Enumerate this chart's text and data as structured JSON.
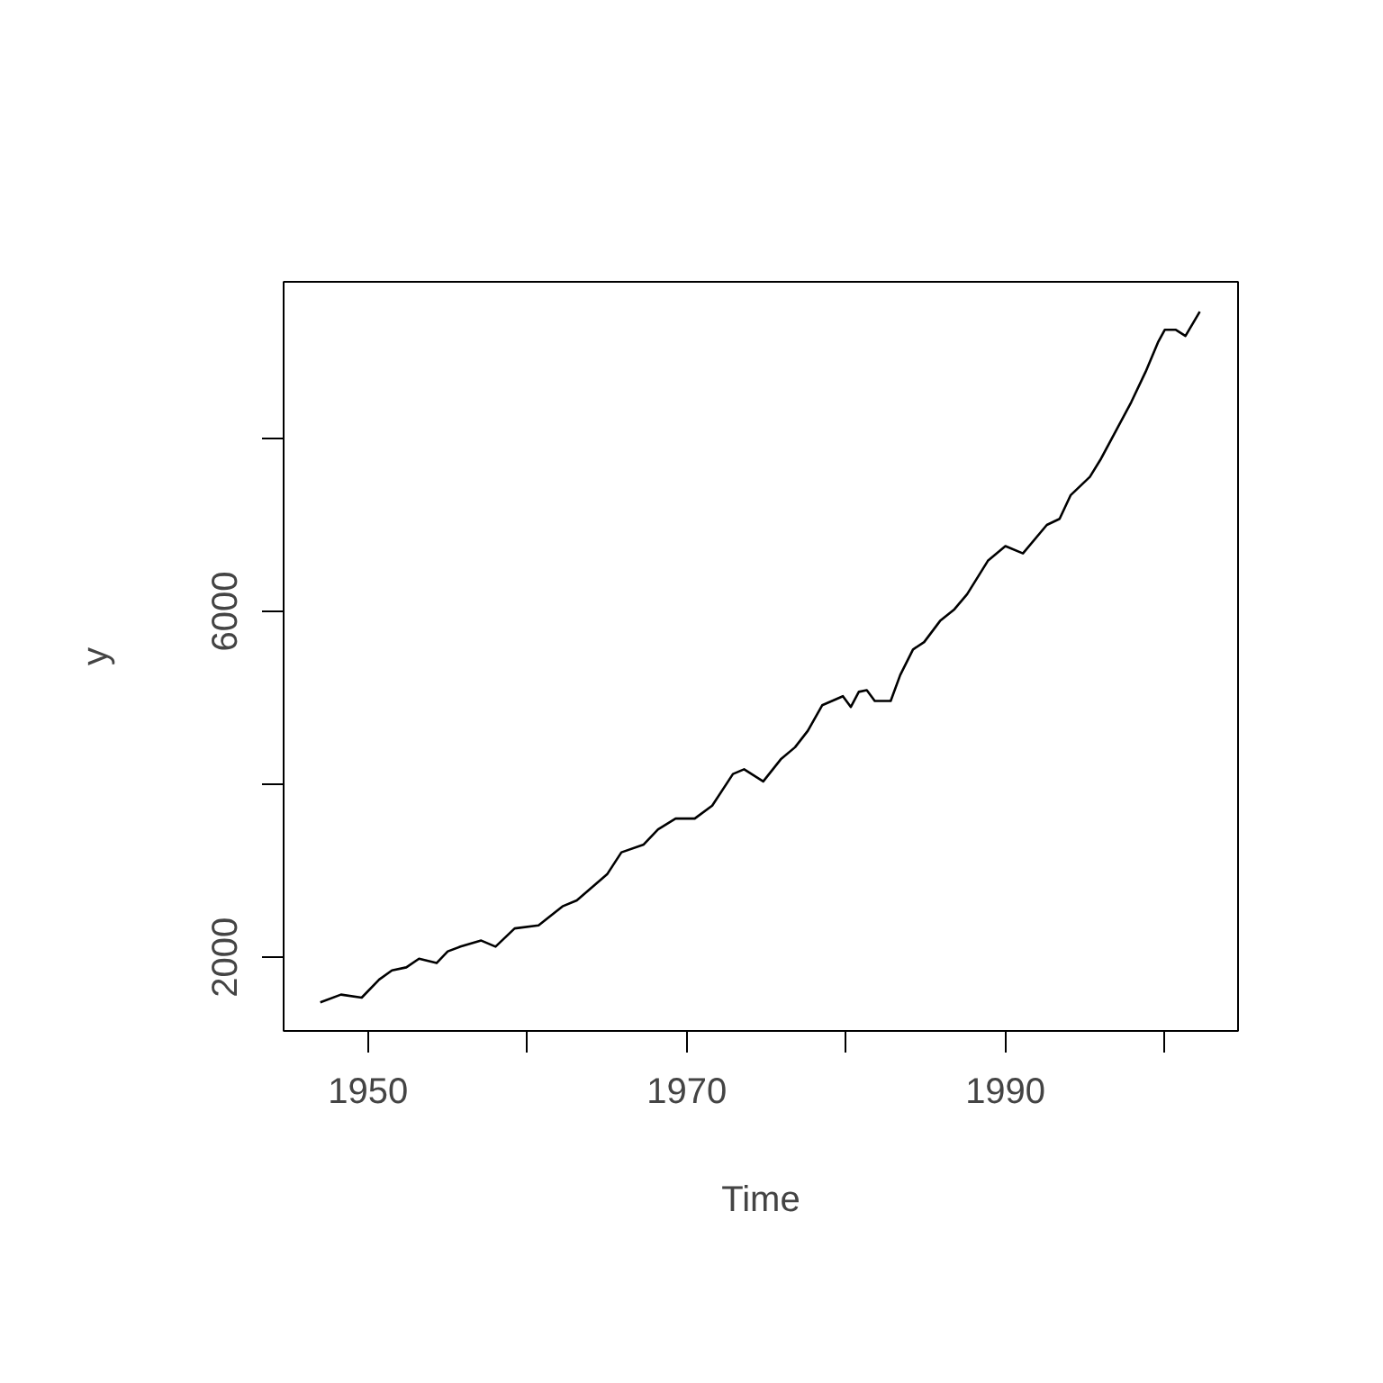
{
  "chart_data": {
    "type": "line",
    "xlabel": "Time",
    "ylabel": "y",
    "color": "#000000",
    "x": [
      1947.0,
      1948.3,
      1949.6,
      1950.7,
      1951.5,
      1952.4,
      1953.2,
      1954.3,
      1955.0,
      1955.8,
      1957.1,
      1958.0,
      1959.2,
      1960.7,
      1962.2,
      1963.1,
      1965.0,
      1965.9,
      1967.3,
      1968.2,
      1969.3,
      1970.5,
      1971.6,
      1972.9,
      1973.6,
      1974.8,
      1975.9,
      1976.8,
      1977.6,
      1978.5,
      1979.8,
      1980.3,
      1980.8,
      1981.3,
      1981.8,
      1982.8,
      1983.4,
      1984.2,
      1984.9,
      1985.9,
      1986.8,
      1987.6,
      1988.9,
      1990.0,
      1991.1,
      1992.6,
      1993.4,
      1994.1,
      1995.3,
      1996.0,
      1997.0,
      1997.9,
      1998.8,
      1999.6,
      2000.0,
      2000.7,
      2001.3,
      2002.2
    ],
    "values": [
      1480,
      1570,
      1535,
      1745,
      1850,
      1885,
      1985,
      1935,
      2070,
      2125,
      2195,
      2125,
      2335,
      2370,
      2590,
      2660,
      2960,
      3215,
      3305,
      3480,
      3605,
      3605,
      3755,
      4120,
      4175,
      4035,
      4290,
      4430,
      4620,
      4915,
      5020,
      4895,
      5070,
      5090,
      4965,
      4965,
      5265,
      5560,
      5645,
      5890,
      6025,
      6200,
      6585,
      6755,
      6670,
      7000,
      7070,
      7345,
      7555,
      7765,
      8110,
      8420,
      8770,
      9120,
      9255,
      9255,
      9185,
      9465
    ],
    "xlim": [
      1944.7,
      2004.6
    ],
    "ylim": [
      1150,
      9810
    ],
    "xticks": [
      1950,
      {
        "value": 1960,
        "label": null
      },
      1970,
      {
        "value": 1980,
        "label": null
      },
      1990,
      {
        "value": 2000,
        "label": null
      }
    ],
    "yticks": [
      2000,
      {
        "value": 4000,
        "label": null
      },
      6000,
      {
        "value": 8000,
        "label": null
      }
    ]
  }
}
